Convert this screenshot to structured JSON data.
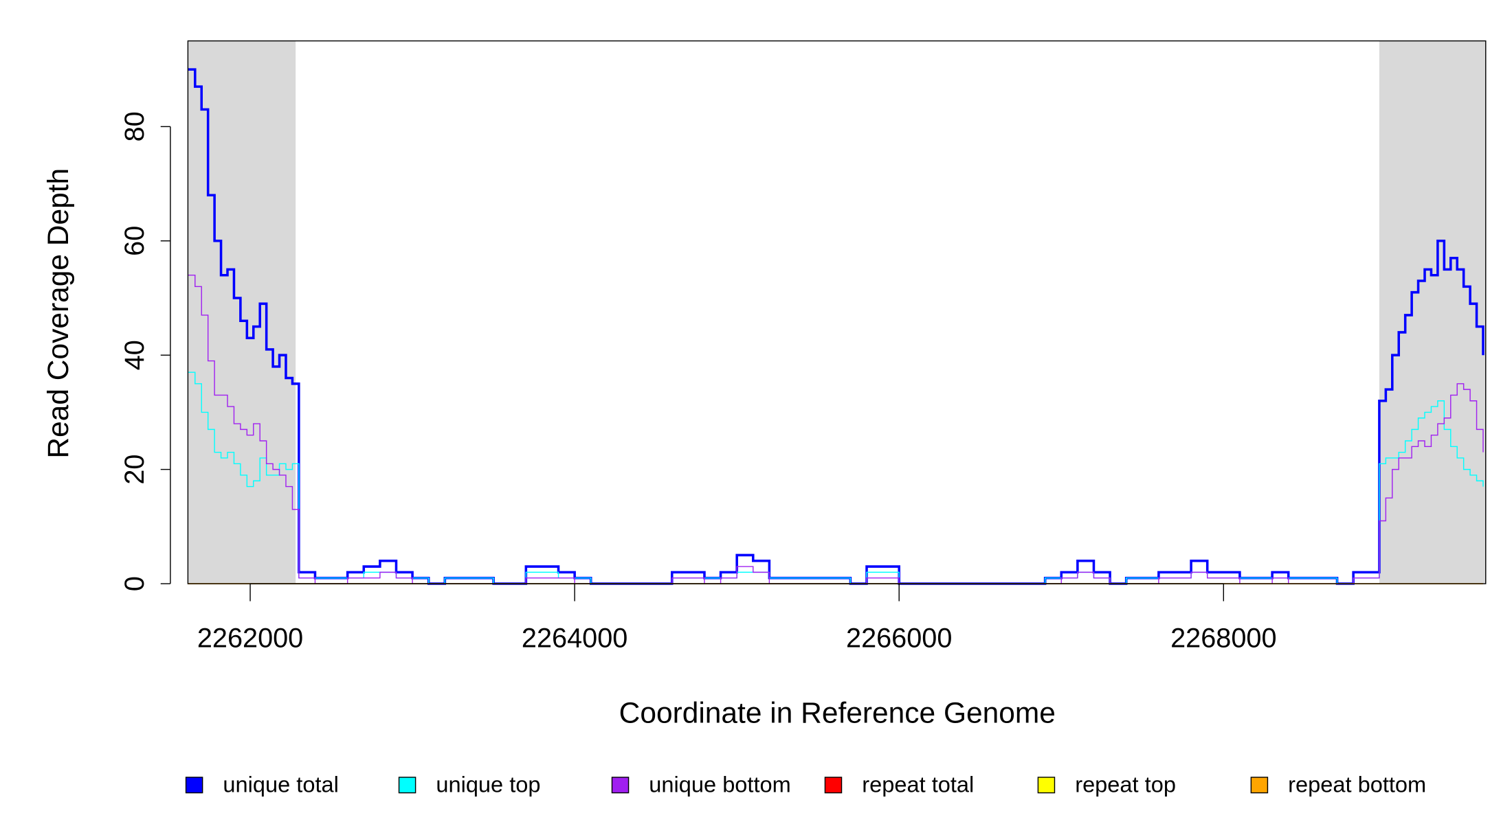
{
  "chart_data": {
    "type": "line",
    "step": true,
    "xlabel": "Coordinate in Reference Genome",
    "ylabel": "Read Coverage Depth",
    "xlim": [
      2261616,
      2269616
    ],
    "ylim": [
      0,
      95
    ],
    "xticks": [
      2262000,
      2264000,
      2266000,
      2268000
    ],
    "yticks": [
      0,
      20,
      40,
      60,
      80
    ],
    "shaded": [
      [
        2261616,
        2262280
      ],
      [
        2268960,
        2269616
      ]
    ],
    "shade_color": "#d9d9d9",
    "x": [
      2261616,
      2261660,
      2261700,
      2261740,
      2261780,
      2261820,
      2261860,
      2261900,
      2261940,
      2261980,
      2262020,
      2262060,
      2262100,
      2262140,
      2262180,
      2262220,
      2262260,
      2262300,
      2262400,
      2262500,
      2262600,
      2262700,
      2262800,
      2262900,
      2263000,
      2263100,
      2263200,
      2263300,
      2263400,
      2263500,
      2263600,
      2263700,
      2263800,
      2263900,
      2264000,
      2264100,
      2264200,
      2264300,
      2264400,
      2264500,
      2264600,
      2264700,
      2264800,
      2264900,
      2265000,
      2265100,
      2265200,
      2265300,
      2265400,
      2265500,
      2265600,
      2265700,
      2265800,
      2265900,
      2266000,
      2266100,
      2266200,
      2266300,
      2266400,
      2266500,
      2266600,
      2266700,
      2266800,
      2266900,
      2267000,
      2267100,
      2267200,
      2267300,
      2267400,
      2267500,
      2267600,
      2267700,
      2267800,
      2267900,
      2268000,
      2268100,
      2268200,
      2268300,
      2268400,
      2268500,
      2268600,
      2268700,
      2268800,
      2268900,
      2268960,
      2269000,
      2269040,
      2269080,
      2269120,
      2269160,
      2269200,
      2269240,
      2269280,
      2269320,
      2269360,
      2269400,
      2269440,
      2269480,
      2269520,
      2269560,
      2269600
    ],
    "series": [
      {
        "name": "unique total",
        "color": "#0000ff",
        "width": 2.5,
        "values": [
          90,
          87,
          83,
          68,
          60,
          54,
          55,
          50,
          46,
          43,
          45,
          49,
          41,
          38,
          40,
          36,
          35,
          2,
          1,
          1,
          2,
          3,
          4,
          2,
          1,
          0,
          1,
          1,
          1,
          0,
          0,
          3,
          3,
          2,
          1,
          0,
          0,
          0,
          0,
          0,
          2,
          2,
          1,
          2,
          5,
          4,
          1,
          1,
          1,
          1,
          1,
          0,
          3,
          3,
          0,
          0,
          0,
          0,
          0,
          0,
          0,
          0,
          0,
          1,
          2,
          4,
          2,
          0,
          1,
          1,
          2,
          2,
          4,
          2,
          2,
          1,
          1,
          2,
          1,
          1,
          1,
          0,
          2,
          2,
          32,
          34,
          40,
          44,
          47,
          51,
          53,
          55,
          54,
          60,
          55,
          57,
          55,
          52,
          49,
          45,
          40
        ]
      },
      {
        "name": "unique top",
        "color": "#00ffff",
        "width": 1,
        "values": [
          37,
          35,
          30,
          27,
          23,
          22,
          23,
          21,
          19,
          17,
          18,
          22,
          19,
          19,
          21,
          20,
          21,
          1,
          1,
          1,
          1,
          2,
          2,
          1,
          1,
          0,
          1,
          1,
          1,
          0,
          0,
          2,
          2,
          1,
          1,
          0,
          0,
          0,
          0,
          0,
          1,
          1,
          1,
          1,
          2,
          2,
          1,
          1,
          1,
          1,
          1,
          0,
          2,
          2,
          0,
          0,
          0,
          0,
          0,
          0,
          0,
          0,
          0,
          1,
          1,
          2,
          1,
          0,
          1,
          1,
          1,
          1,
          2,
          1,
          1,
          1,
          1,
          1,
          1,
          1,
          1,
          0,
          1,
          1,
          21,
          22,
          22,
          23,
          25,
          27,
          29,
          30,
          31,
          32,
          27,
          24,
          22,
          20,
          19,
          18,
          17
        ]
      },
      {
        "name": "unique bottom",
        "color": "#a020f0",
        "width": 1,
        "values": [
          54,
          52,
          47,
          39,
          33,
          33,
          31,
          28,
          27,
          26,
          28,
          25,
          21,
          20,
          19,
          17,
          13,
          1,
          0,
          0,
          1,
          1,
          2,
          1,
          0,
          0,
          0,
          0,
          0,
          0,
          0,
          1,
          1,
          1,
          0,
          0,
          0,
          0,
          0,
          0,
          1,
          1,
          0,
          1,
          3,
          2,
          0,
          0,
          0,
          0,
          0,
          0,
          1,
          1,
          0,
          0,
          0,
          0,
          0,
          0,
          0,
          0,
          0,
          0,
          1,
          2,
          1,
          0,
          0,
          0,
          1,
          1,
          2,
          1,
          1,
          0,
          0,
          1,
          0,
          0,
          0,
          0,
          1,
          1,
          11,
          15,
          20,
          22,
          22,
          24,
          25,
          24,
          26,
          28,
          29,
          33,
          35,
          34,
          32,
          27,
          23
        ]
      },
      {
        "name": "repeat total",
        "color": "#ff0000",
        "width": 1,
        "values": [
          0,
          0,
          0,
          0,
          0,
          0,
          0,
          0,
          0,
          0,
          0,
          0,
          0,
          0,
          0,
          0,
          0,
          0,
          0,
          0,
          0,
          0,
          0,
          0,
          0,
          0,
          0,
          0,
          0,
          0,
          0,
          0,
          0,
          0,
          0,
          0,
          0,
          0,
          0,
          0,
          0,
          0,
          0,
          0,
          0,
          0,
          0,
          0,
          0,
          0,
          0,
          0,
          0,
          0,
          0,
          0,
          0,
          0,
          0,
          0,
          0,
          0,
          0,
          0,
          0,
          0,
          0,
          0,
          0,
          0,
          0,
          0,
          0,
          0,
          0,
          0,
          0,
          0,
          0,
          0,
          0,
          0,
          0,
          0,
          0,
          0,
          0,
          0,
          0,
          0,
          0,
          0,
          0,
          0,
          0,
          0,
          0,
          0,
          0,
          0,
          0
        ]
      },
      {
        "name": "repeat top",
        "color": "#ffff00",
        "width": 1,
        "values": [
          0,
          0,
          0,
          0,
          0,
          0,
          0,
          0,
          0,
          0,
          0,
          0,
          0,
          0,
          0,
          0,
          0,
          0,
          0,
          0,
          0,
          0,
          0,
          0,
          0,
          0,
          0,
          0,
          0,
          0,
          0,
          0,
          0,
          0,
          0,
          0,
          0,
          0,
          0,
          0,
          0,
          0,
          0,
          0,
          0,
          0,
          0,
          0,
          0,
          0,
          0,
          0,
          0,
          0,
          0,
          0,
          0,
          0,
          0,
          0,
          0,
          0,
          0,
          0,
          0,
          0,
          0,
          0,
          0,
          0,
          0,
          0,
          0,
          0,
          0,
          0,
          0,
          0,
          0,
          0,
          0,
          0,
          0,
          0,
          0,
          0,
          0,
          0,
          0,
          0,
          0,
          0,
          0,
          0,
          0,
          0,
          0,
          0,
          0,
          0,
          0
        ]
      },
      {
        "name": "repeat bottom",
        "color": "#ffa500",
        "width": 1,
        "values": [
          0,
          0,
          0,
          0,
          0,
          0,
          0,
          0,
          0,
          0,
          0,
          0,
          0,
          0,
          0,
          0,
          0,
          0,
          0,
          0,
          0,
          0,
          0,
          0,
          0,
          0,
          0,
          0,
          0,
          0,
          0,
          0,
          0,
          0,
          0,
          0,
          0,
          0,
          0,
          0,
          0,
          0,
          0,
          0,
          0,
          0,
          0,
          0,
          0,
          0,
          0,
          0,
          0,
          0,
          0,
          0,
          0,
          0,
          0,
          0,
          0,
          0,
          0,
          0,
          0,
          0,
          0,
          0,
          0,
          0,
          0,
          0,
          0,
          0,
          0,
          0,
          0,
          0,
          0,
          0,
          0,
          0,
          0,
          0,
          0,
          0,
          0,
          0,
          0,
          0,
          0,
          0,
          0,
          0,
          0,
          0,
          0,
          0,
          0,
          0,
          0
        ]
      }
    ]
  }
}
